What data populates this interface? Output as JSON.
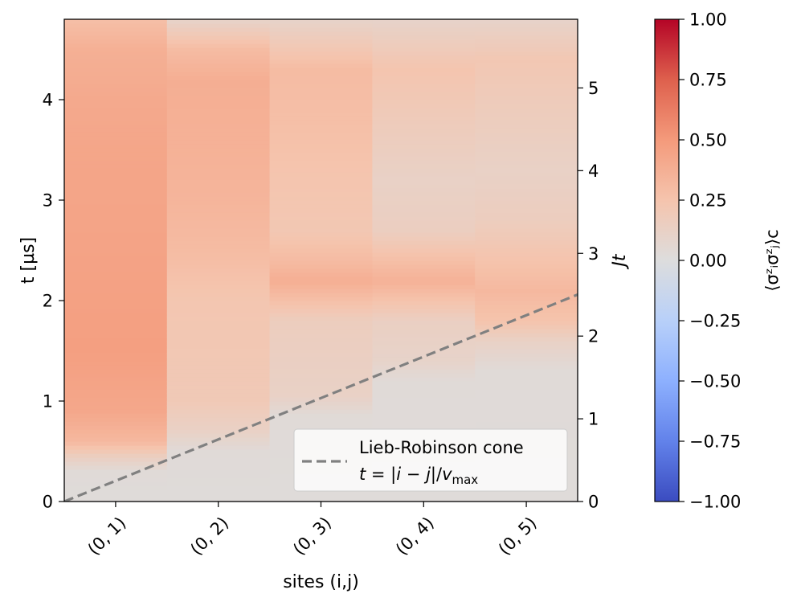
{
  "chart_data": {
    "type": "heatmap",
    "categories": [
      "(0, 1)",
      "(0, 2)",
      "(0, 3)",
      "(0, 4)",
      "(0, 5)"
    ],
    "xlabel": "sites (i,j)",
    "ylabel": "t [µs]",
    "ylabel_right": "Jt",
    "ylim": [
      0,
      4.8
    ],
    "ylim_right": [
      0,
      5.83
    ],
    "yticks": [
      0,
      1,
      2,
      3,
      4
    ],
    "yticks_right": [
      0,
      1,
      2,
      3,
      4,
      5
    ],
    "colorbar": {
      "label": "⟨σᶻᵢσᶻⱼ⟩c",
      "range": [
        -1.0,
        1.0
      ],
      "ticks": [
        "1.00",
        "0.75",
        "0.50",
        "0.25",
        "0.00",
        "−0.25",
        "−0.50",
        "−0.75",
        "−1.00"
      ],
      "tick_values": [
        1.0,
        0.75,
        0.5,
        0.25,
        0.0,
        -0.25,
        -0.5,
        -0.75,
        -1.0
      ],
      "colormap": "coolwarm"
    },
    "heatmap_columns": [
      {
        "site": "(0, 1)",
        "profile": [
          [
            0.0,
            0.02
          ],
          [
            0.3,
            0.03
          ],
          [
            0.45,
            0.15
          ],
          [
            0.6,
            0.32
          ],
          [
            0.9,
            0.42
          ],
          [
            1.5,
            0.47
          ],
          [
            2.0,
            0.46
          ],
          [
            2.8,
            0.44
          ],
          [
            3.5,
            0.43
          ],
          [
            4.0,
            0.41
          ],
          [
            4.5,
            0.37
          ],
          [
            4.8,
            0.28
          ]
        ]
      },
      {
        "site": "(0, 2)",
        "profile": [
          [
            0.0,
            0.02
          ],
          [
            0.5,
            0.03
          ],
          [
            0.7,
            0.12
          ],
          [
            1.0,
            0.2
          ],
          [
            2.0,
            0.23
          ],
          [
            2.5,
            0.3
          ],
          [
            3.0,
            0.34
          ],
          [
            3.5,
            0.36
          ],
          [
            4.2,
            0.38
          ],
          [
            4.5,
            0.3
          ],
          [
            4.8,
            0.1
          ]
        ]
      },
      {
        "site": "(0, 3)",
        "profile": [
          [
            0.0,
            0.02
          ],
          [
            0.85,
            0.03
          ],
          [
            1.05,
            0.12
          ],
          [
            1.8,
            0.16
          ],
          [
            2.05,
            0.3
          ],
          [
            2.2,
            0.38
          ],
          [
            2.4,
            0.3
          ],
          [
            2.7,
            0.22
          ],
          [
            3.2,
            0.24
          ],
          [
            3.8,
            0.28
          ],
          [
            4.3,
            0.3
          ],
          [
            4.8,
            0.1
          ]
        ]
      },
      {
        "site": "(0, 4)",
        "profile": [
          [
            0.0,
            0.02
          ],
          [
            1.2,
            0.03
          ],
          [
            1.4,
            0.1
          ],
          [
            1.8,
            0.14
          ],
          [
            2.05,
            0.28
          ],
          [
            2.2,
            0.36
          ],
          [
            2.4,
            0.28
          ],
          [
            2.7,
            0.15
          ],
          [
            3.2,
            0.12
          ],
          [
            3.8,
            0.18
          ],
          [
            4.3,
            0.24
          ],
          [
            4.8,
            0.1
          ]
        ]
      },
      {
        "site": "(0, 5)",
        "profile": [
          [
            0.0,
            0.02
          ],
          [
            1.3,
            0.03
          ],
          [
            1.6,
            0.12
          ],
          [
            1.8,
            0.25
          ],
          [
            2.1,
            0.32
          ],
          [
            2.4,
            0.25
          ],
          [
            2.8,
            0.16
          ],
          [
            3.3,
            0.12
          ],
          [
            4.0,
            0.18
          ],
          [
            4.4,
            0.22
          ],
          [
            4.8,
            0.1
          ]
        ]
      }
    ],
    "line": {
      "name": "Lieb-Robinson cone",
      "formula_prefix": "t",
      "formula_eq": " = |",
      "formula_i": "i",
      "formula_minus": " − ",
      "formula_j": "j",
      "formula_div": "|/",
      "formula_v": "v",
      "formula_sub": "max",
      "style": "dashed",
      "color": "#808080",
      "x_start": -0.5,
      "y_start": 0.0,
      "x_end": 4.5,
      "y_end": 2.06
    },
    "legend_position": "bottom-right"
  }
}
